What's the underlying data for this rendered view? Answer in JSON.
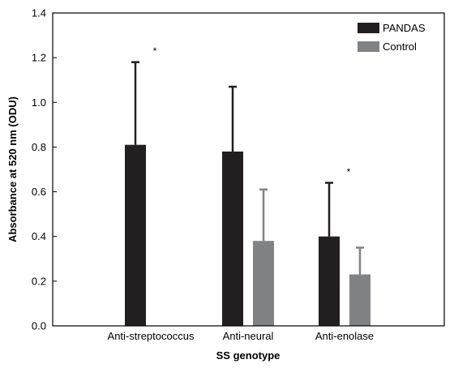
{
  "chart_data": {
    "type": "bar",
    "title": "",
    "xlabel": "SS genotype",
    "ylabel": "Absorbance at 520 nm (ODU)",
    "ylim": [
      0,
      1.4
    ],
    "yticks": [
      "0.0",
      "0.2",
      "0.4",
      "0.6",
      "0.8",
      "1.0",
      "1.2",
      "1.4"
    ],
    "categories": [
      "Anti-streptococcus",
      "Anti-neural",
      "Anti-enolase"
    ],
    "series": [
      {
        "name": "PANDAS",
        "color": "#231f20",
        "values": [
          0.81,
          0.78,
          0.4
        ],
        "error": [
          0.37,
          0.29,
          0.24
        ]
      },
      {
        "name": "Control",
        "color": "#808285",
        "values": [
          null,
          0.38,
          0.23
        ],
        "error": [
          null,
          0.23,
          0.12
        ]
      }
    ],
    "annotations": [
      {
        "text": "*",
        "category": "Anti-streptococcus",
        "y": 1.23
      },
      {
        "text": "*",
        "category": "Anti-enolase",
        "y": 0.69
      }
    ],
    "grid": false,
    "legend_position": "top-right"
  }
}
